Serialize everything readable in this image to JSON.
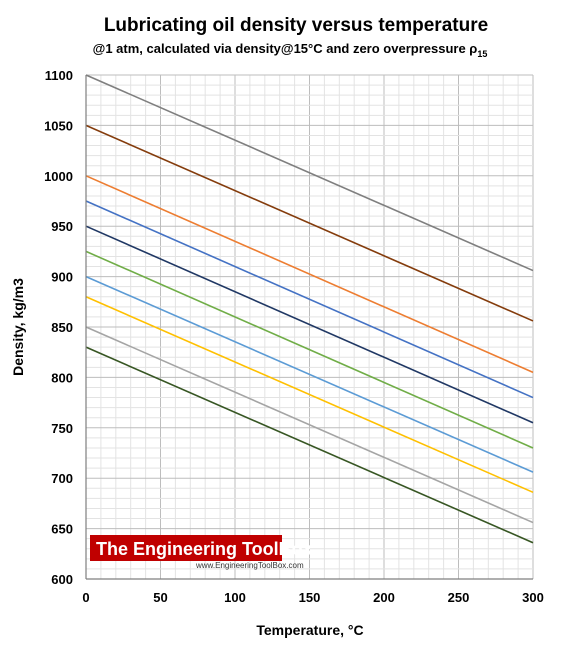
{
  "chart_data": {
    "type": "line",
    "title": "Lubricating oil density versus temperature",
    "subtitle": "@1 atm, calculated via density@15°C and zero overpressure ρ",
    "subtitle_subscript": "15",
    "xlabel": "Temperature, °C",
    "ylabel": "Density, kg/m3",
    "xlim": [
      0,
      300
    ],
    "ylim": [
      600,
      1100
    ],
    "xticks": [
      "0",
      "50",
      "100",
      "150",
      "200",
      "250",
      "300"
    ],
    "yticks": [
      "600",
      "650",
      "700",
      "750",
      "800",
      "850",
      "900",
      "950",
      "1000",
      "1050",
      "1100"
    ],
    "grid": true,
    "legend": "none",
    "series": [
      {
        "color": "#7f7f7f",
        "x": [
          0,
          300
        ],
        "y": [
          1100,
          906
        ]
      },
      {
        "color": "#843c0c",
        "x": [
          0,
          300
        ],
        "y": [
          1050,
          856
        ]
      },
      {
        "color": "#ed7d31",
        "x": [
          0,
          300
        ],
        "y": [
          1000,
          805
        ]
      },
      {
        "color": "#4472c4",
        "x": [
          0,
          300
        ],
        "y": [
          975,
          780
        ]
      },
      {
        "color": "#203864",
        "x": [
          0,
          300
        ],
        "y": [
          950,
          755
        ]
      },
      {
        "color": "#70ad47",
        "x": [
          0,
          300
        ],
        "y": [
          925,
          730
        ]
      },
      {
        "color": "#5b9bd5",
        "x": [
          0,
          300
        ],
        "y": [
          900,
          706
        ]
      },
      {
        "color": "#ffc000",
        "x": [
          0,
          300
        ],
        "y": [
          880,
          686
        ]
      },
      {
        "color": "#a5a5a5",
        "x": [
          0,
          300
        ],
        "y": [
          850,
          656
        ]
      },
      {
        "color": "#375623",
        "x": [
          0,
          300
        ],
        "y": [
          830,
          636
        ]
      }
    ]
  },
  "watermark": {
    "title": "The Engineering ToolBox",
    "url": "www.EngineeringToolBox.com",
    "box_color": "#c00000"
  }
}
